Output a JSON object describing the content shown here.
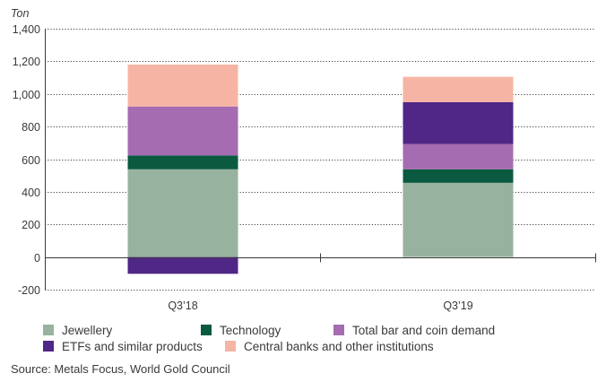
{
  "chart_data": {
    "type": "bar",
    "stacked": true,
    "unit_label": "Ton",
    "categories": [
      "Q3’18",
      "Q3’19"
    ],
    "series": [
      {
        "name": "Jewellery",
        "color": "#98b2a0",
        "values": [
          538,
          455
        ]
      },
      {
        "name": "Technology",
        "color": "#0a5a40",
        "values": [
          85,
          83
        ]
      },
      {
        "name": "Total bar and coin demand",
        "color": "#a56cb1",
        "values": [
          300,
          155
        ]
      },
      {
        "name": "ETFs and similar products",
        "color": "#4f2786",
        "values": [
          -103,
          257
        ]
      },
      {
        "name": "Central banks and other institutions",
        "color": "#f6b5a4",
        "values": [
          257,
          155
        ]
      }
    ],
    "ylim": [
      -200,
      1400
    ],
    "yticks": [
      -200,
      0,
      200,
      400,
      600,
      800,
      1000,
      1200,
      1400
    ],
    "ytick_labels": [
      "-200",
      "0",
      "200",
      "400",
      "600",
      "800",
      "1,000",
      "1,200",
      "1,400"
    ],
    "grid": true,
    "legend_position": "bottom",
    "source": "Source: Metals Focus, World Gold Council"
  }
}
